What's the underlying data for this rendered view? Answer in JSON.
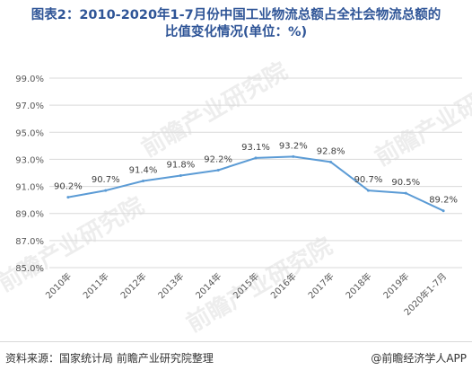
{
  "title": {
    "line1": "图表2：2010-2020年1-7月份中国工业物流总额占全社会物流总额的",
    "line2": "比值变化情况(单位：%)"
  },
  "chart_data": {
    "type": "line",
    "categories": [
      "2010年",
      "2011年",
      "2012年",
      "2013年",
      "2014年",
      "2015年",
      "2016年",
      "2017年",
      "2018年",
      "2019年",
      "2020年1-7月"
    ],
    "series": [
      {
        "values": [
          90.2,
          90.7,
          91.4,
          91.8,
          92.2,
          93.1,
          93.2,
          92.8,
          90.7,
          90.5,
          89.2
        ],
        "labels": [
          "90.2%",
          "90.7%",
          "91.4%",
          "91.8%",
          "92.2%",
          "93.1%",
          "93.2%",
          "92.8%",
          "90.7%",
          "90.5%",
          "89.2%"
        ],
        "color": "#5b9bd5"
      }
    ],
    "yticks": [
      "85.0%",
      "87.0%",
      "89.0%",
      "91.0%",
      "93.0%",
      "95.0%",
      "97.0%",
      "99.0%"
    ],
    "ylim": [
      85,
      99
    ],
    "grid": true
  },
  "watermark": "前瞻产业研究院",
  "footer": {
    "source": "资料来源：国家统计局 前瞻产业研究院整理",
    "brand": "@前瞻经济学人APP"
  }
}
